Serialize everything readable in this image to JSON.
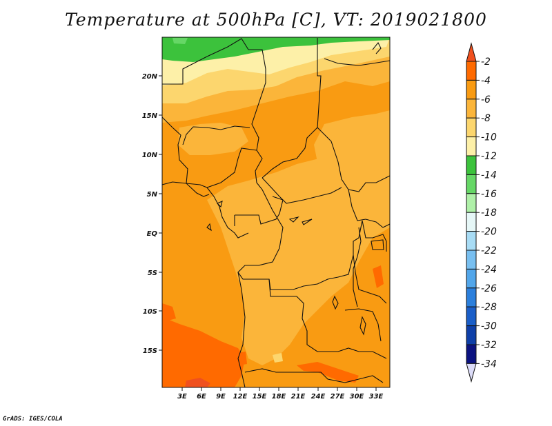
{
  "title": "Temperature at 500hPa [C], VT: 2019021800",
  "footer": "GrADS: IGES/COLA",
  "map": {
    "lat_labels": [
      "20N",
      "15N",
      "10N",
      "5N",
      "EQ",
      "5S",
      "10S",
      "15S"
    ],
    "lon_labels": [
      "3E",
      "6E",
      "9E",
      "12E",
      "15E",
      "18E",
      "21E",
      "24E",
      "27E",
      "30E",
      "33E"
    ]
  },
  "colorbar": {
    "levels": [
      "-2",
      "-4",
      "-6",
      "-8",
      "-10",
      "-12",
      "-14",
      "-16",
      "-18",
      "-20",
      "-22",
      "-24",
      "-26",
      "-28",
      "-30",
      "-32",
      "-34"
    ],
    "colors": [
      "#f0501e",
      "#ff6a00",
      "#f99b12",
      "#fbb53a",
      "#fcd66e",
      "#fdf0a8",
      "#3cc23c",
      "#66d766",
      "#aff0a8",
      "#e6f7f7",
      "#a8dcf5",
      "#78bff0",
      "#52a6ea",
      "#2b7fdc",
      "#1a5ec8",
      "#0e3fa8",
      "#0b1280",
      "#dcdcf8"
    ]
  }
}
